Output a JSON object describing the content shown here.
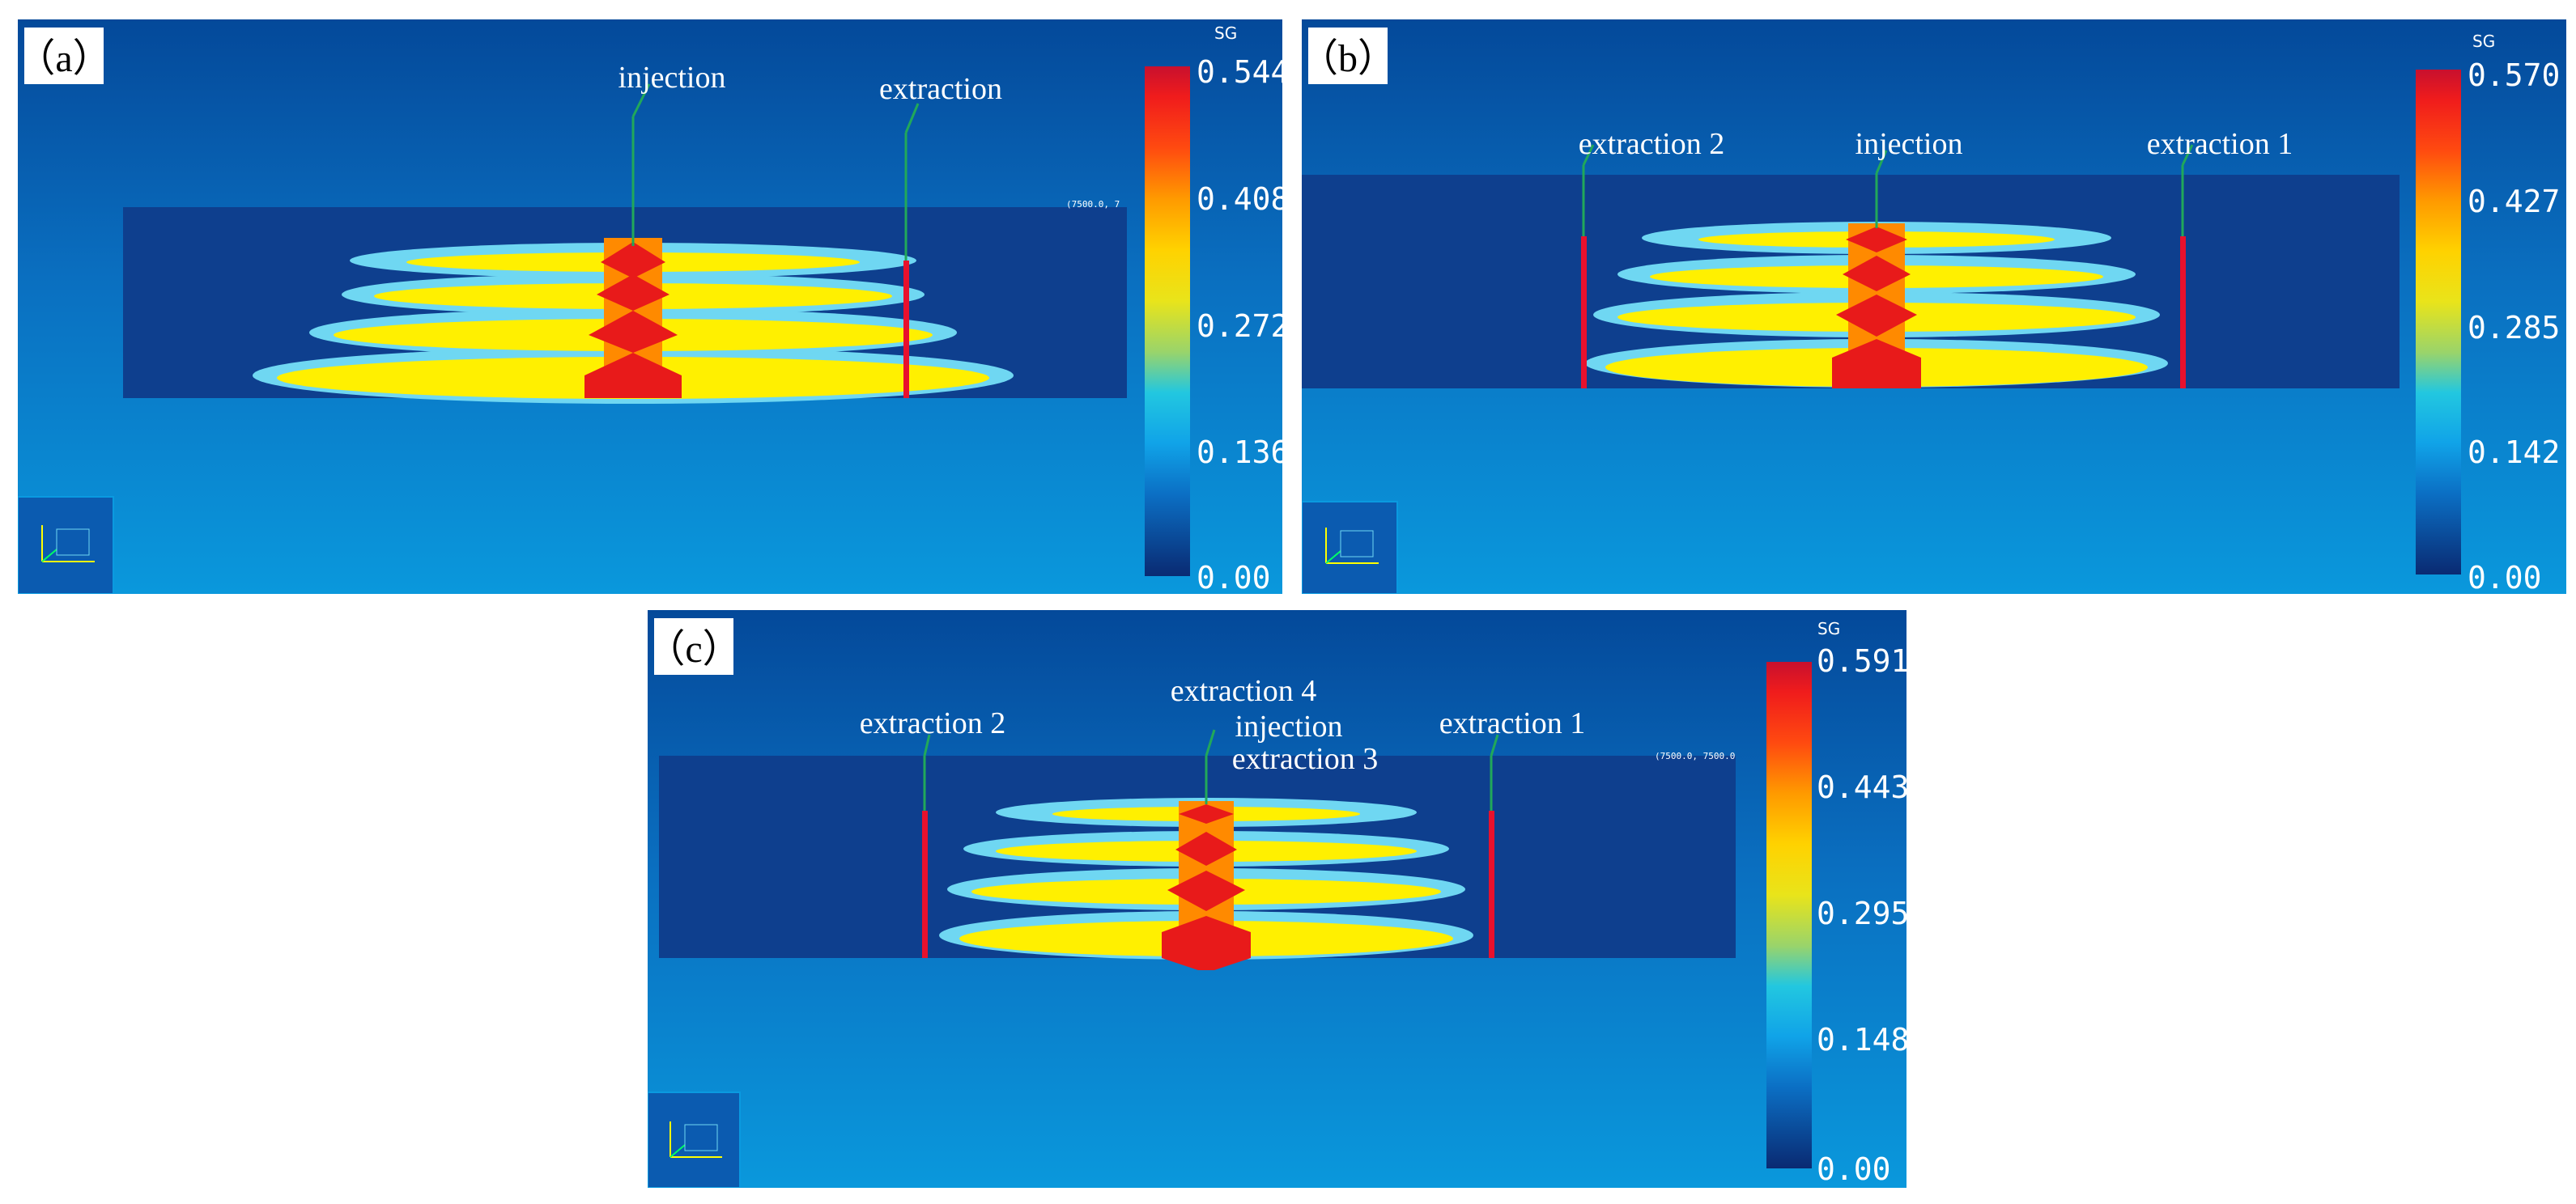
{
  "colorbar_title": "SG",
  "colors": {
    "background_top": "#064a97",
    "background_bottom": "#0a8fd6",
    "reservoir": "#0e3f8e",
    "well": "#e8112d",
    "leader": "#21a85a"
  },
  "panels": [
    {
      "id": "a",
      "label": "（a）",
      "colorbar_ticks": [
        "0.544",
        "0.408",
        "0.272",
        "0.136",
        "0.00"
      ],
      "corner_text": "(7500.0, 7",
      "wells": [
        {
          "name": "injection",
          "type": "injection"
        },
        {
          "name": "extraction",
          "type": "extraction"
        }
      ]
    },
    {
      "id": "b",
      "label": "（b）",
      "colorbar_ticks": [
        "0.570",
        "0.427",
        "0.285",
        "0.142",
        "0.00"
      ],
      "corner_text": "",
      "wells": [
        {
          "name": "extraction 2",
          "type": "extraction"
        },
        {
          "name": "injection",
          "type": "injection"
        },
        {
          "name": "extraction 1",
          "type": "extraction"
        }
      ]
    },
    {
      "id": "c",
      "label": "（c）",
      "colorbar_ticks": [
        "0.591",
        "0.443",
        "0.295",
        "0.148",
        "0.00"
      ],
      "corner_text": "(7500.0, 7500.0",
      "wells": [
        {
          "name": "extraction 2",
          "type": "extraction"
        },
        {
          "name": "extraction 4",
          "type": "extraction"
        },
        {
          "name": "injection",
          "type": "injection"
        },
        {
          "name": "extraction 3",
          "type": "extraction"
        },
        {
          "name": "extraction 1",
          "type": "extraction"
        }
      ]
    }
  ]
}
